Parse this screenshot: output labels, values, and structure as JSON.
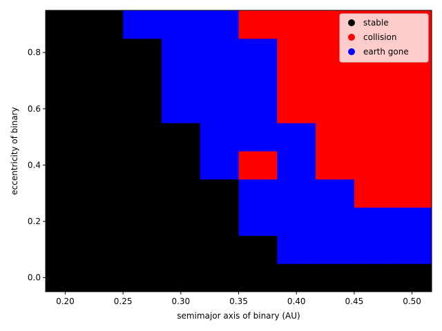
{
  "chart_data": {
    "type": "heatmap",
    "title": "",
    "xlabel": "semimajor axis of binary (AU)",
    "ylabel": "eccentricity of binary",
    "xlim": [
      0.183,
      0.517
    ],
    "ylim": [
      -0.05,
      0.95
    ],
    "x_ticks": [
      "0.20",
      "0.25",
      "0.30",
      "0.35",
      "0.40",
      "0.45",
      "0.50"
    ],
    "x_tick_values": [
      0.2,
      0.25,
      0.3,
      0.35,
      0.4,
      0.45,
      0.5
    ],
    "y_ticks": [
      "0.0",
      "0.2",
      "0.4",
      "0.6",
      "0.8"
    ],
    "y_tick_values": [
      0.0,
      0.2,
      0.4,
      0.6,
      0.8
    ],
    "x_cells": [
      0.2,
      0.2333,
      0.2667,
      0.3,
      0.3333,
      0.3667,
      0.4,
      0.4333,
      0.4667,
      0.5
    ],
    "y_cells": [
      0.0,
      0.1,
      0.2,
      0.3,
      0.4,
      0.5,
      0.6,
      0.7,
      0.8,
      0.9
    ],
    "outcome_grid": [
      [
        0,
        0,
        0,
        0,
        0,
        0,
        0,
        0,
        0,
        0
      ],
      [
        0,
        0,
        0,
        0,
        0,
        0,
        2,
        2,
        2,
        2
      ],
      [
        0,
        0,
        0,
        0,
        0,
        2,
        2,
        2,
        2,
        2
      ],
      [
        0,
        0,
        0,
        0,
        0,
        2,
        2,
        2,
        1,
        1
      ],
      [
        0,
        0,
        0,
        0,
        2,
        1,
        2,
        1,
        1,
        1
      ],
      [
        0,
        0,
        0,
        0,
        2,
        2,
        2,
        1,
        1,
        1
      ],
      [
        0,
        0,
        0,
        2,
        2,
        2,
        1,
        1,
        1,
        1
      ],
      [
        0,
        0,
        0,
        2,
        2,
        2,
        1,
        1,
        1,
        1
      ],
      [
        0,
        0,
        0,
        2,
        2,
        2,
        1,
        1,
        1,
        1
      ],
      [
        0,
        0,
        2,
        2,
        2,
        1,
        1,
        1,
        1,
        1
      ]
    ],
    "categories": [
      "stable",
      "collision",
      "earth gone"
    ],
    "colors": [
      "#000000",
      "#ff0000",
      "#0000ff"
    ],
    "legend": {
      "placement": "top-right",
      "entries": [
        {
          "label": "stable",
          "color": "#000000"
        },
        {
          "label": "collision",
          "color": "#ff0000"
        },
        {
          "label": "earth gone",
          "color": "#0000ff"
        }
      ]
    },
    "grid": false
  }
}
